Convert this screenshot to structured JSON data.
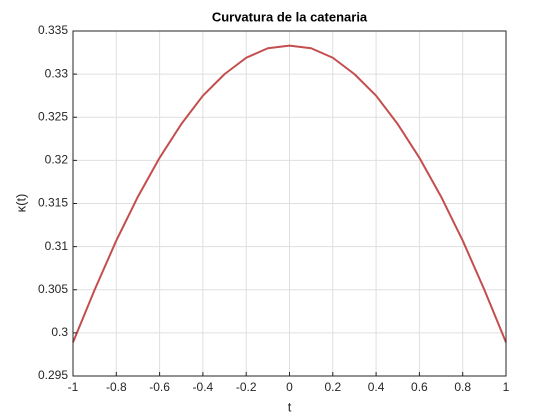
{
  "chart_data": {
    "type": "line",
    "title": "Curvatura de la catenaria",
    "xlabel": "t",
    "ylabel": "κ(t)",
    "x": [
      -1,
      -0.9,
      -0.8,
      -0.7,
      -0.6,
      -0.5,
      -0.4,
      -0.3,
      -0.2,
      -0.1,
      0,
      0.1,
      0.2,
      0.3,
      0.4,
      0.5,
      0.6,
      0.7,
      0.8,
      0.9,
      1
    ],
    "series": [
      {
        "color": "#c44e4e",
        "values": [
          0.2989,
          0.305,
          0.3107,
          0.3158,
          0.3203,
          0.3242,
          0.3275,
          0.33,
          0.3319,
          0.333,
          0.3333,
          0.333,
          0.3319,
          0.33,
          0.3275,
          0.3242,
          0.3203,
          0.3158,
          0.3107,
          0.305,
          0.2989
        ]
      }
    ],
    "xlim": [
      -1,
      1
    ],
    "xticks": [
      -1,
      -0.8,
      -0.6,
      -0.4,
      -0.2,
      0,
      0.2,
      0.4,
      0.6,
      0.8,
      1
    ],
    "ylim": [
      0.295,
      0.335
    ],
    "yticks": [
      0.295,
      0.3,
      0.305,
      0.31,
      0.315,
      0.32,
      0.325,
      0.33,
      0.335
    ],
    "grid": true
  }
}
